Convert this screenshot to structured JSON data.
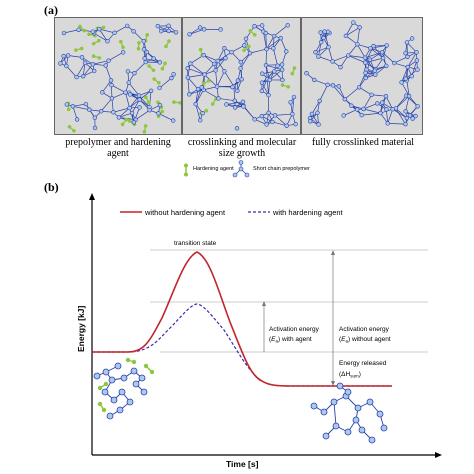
{
  "panel_a": {
    "label": "(a)",
    "captions": {
      "c1": "prepolymer and hardening agent",
      "c1_line1": "prepolymer and hardening",
      "c1_line2": "agent",
      "c2_line1": "crosslinking and molecular",
      "c2_line2": "size growth",
      "c3": "fully crosslinked material"
    },
    "legend": {
      "hardening_agent": "Hardening agent",
      "prepolymer": "Short chain prepolymer"
    }
  },
  "panel_b": {
    "label": "(b)",
    "legend": {
      "without": "without hardening agent",
      "with": "with hardening agent"
    },
    "colors": {
      "without": "#c0262b",
      "with": "#3b2bb0",
      "node_fill": "#a9c9ee",
      "node_stroke": "#2a3fa8",
      "agent": "#8ec63f"
    },
    "transition_label": "transition state",
    "annotation_with_l1": "Activation energy",
    "annotation_with_l2a": "(",
    "annotation_with_E": "E",
    "annotation_with_sub": "a",
    "annotation_with_l2b": ") with agent",
    "annotation_without_l1": "Activation energy",
    "annotation_without_l2a": "(",
    "annotation_without_E": "E",
    "annotation_without_sub": "a",
    "annotation_without_l2b": ") without agent",
    "released_l1": "Energy released",
    "released_l2a": "(ΔH",
    "released_sub": "sum",
    "released_l2b": ")",
    "ylabel": "Energy [kJ]",
    "xlabel": "Time [s]"
  }
}
